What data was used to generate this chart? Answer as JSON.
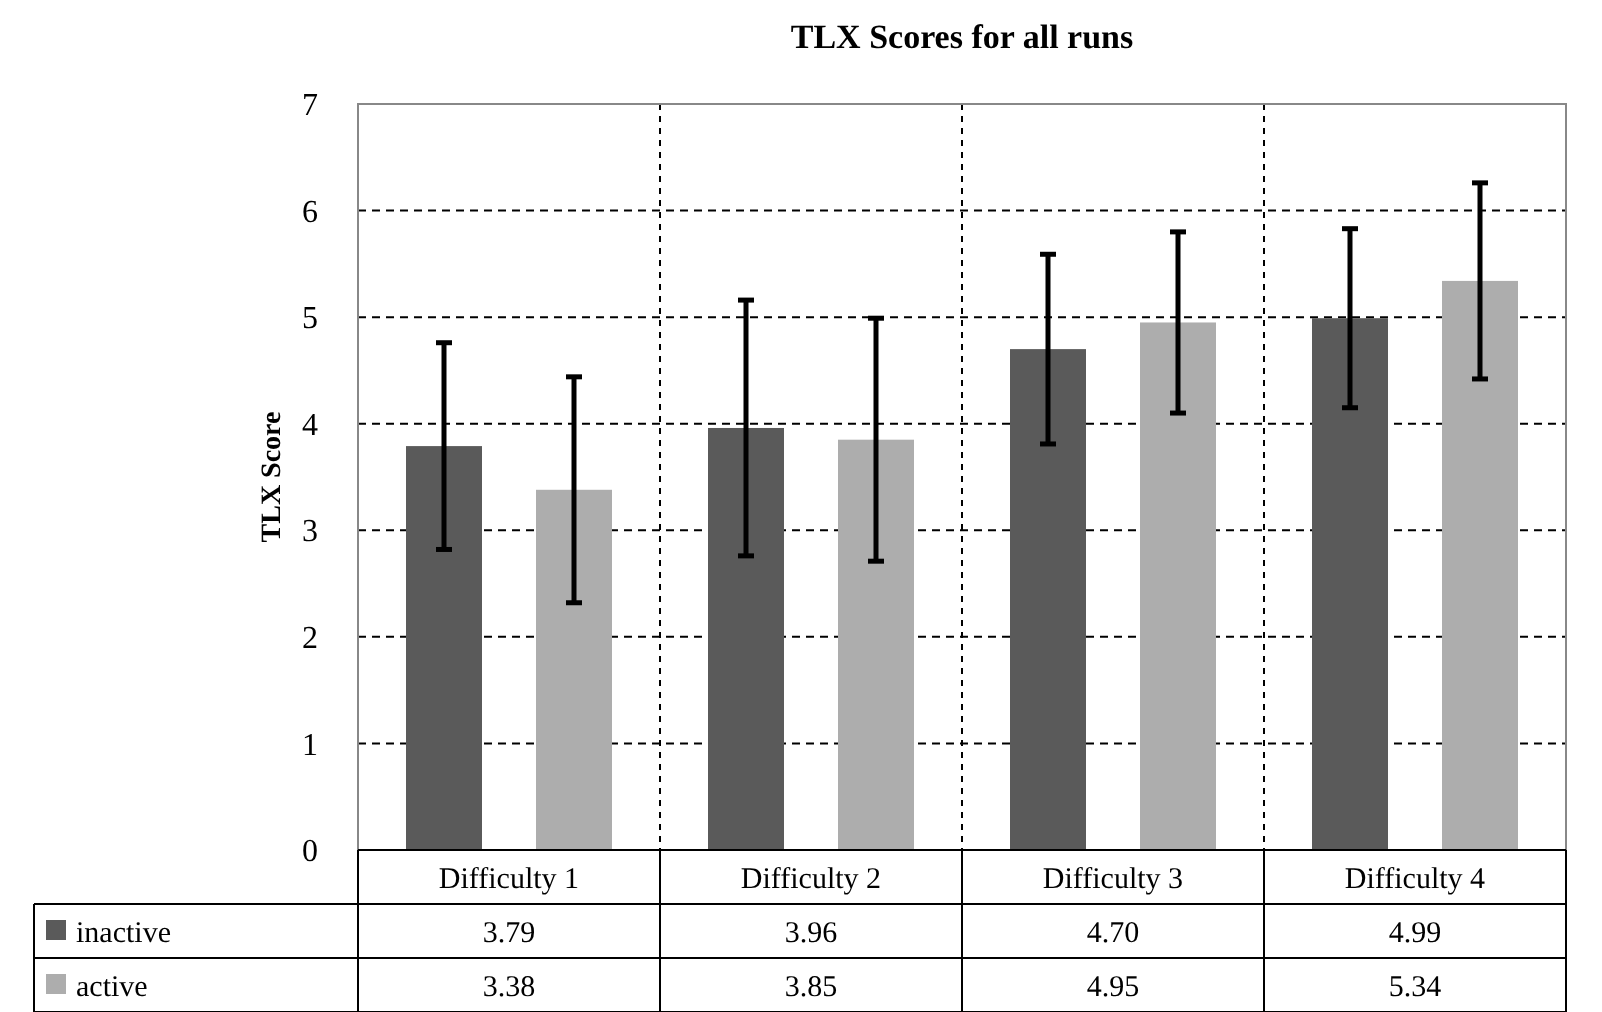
{
  "chart_data": {
    "type": "bar",
    "title": "TLX Scores for all runs",
    "ylabel": "TLX Score",
    "categories": [
      "Difficulty 1",
      "Difficulty 2",
      "Difficulty 3",
      "Difficulty 4"
    ],
    "series": [
      {
        "name": "inactive",
        "color": "#5a5a5a",
        "values": [
          3.79,
          3.96,
          4.7,
          4.99
        ],
        "value_labels": [
          "3.79",
          "3.96",
          "4.70",
          "4.99"
        ],
        "errors": [
          0.97,
          1.2,
          0.89,
          0.84
        ]
      },
      {
        "name": "active",
        "color": "#adadad",
        "values": [
          3.38,
          3.85,
          4.95,
          5.34
        ],
        "value_labels": [
          "3.38",
          "3.85",
          "4.95",
          "5.34"
        ],
        "errors": [
          1.06,
          1.14,
          0.85,
          0.92
        ]
      }
    ],
    "ylim": [
      0,
      7
    ],
    "yticks": [
      0,
      1,
      2,
      3,
      4,
      5,
      6,
      7
    ],
    "grid": true,
    "legend": "bottom"
  }
}
